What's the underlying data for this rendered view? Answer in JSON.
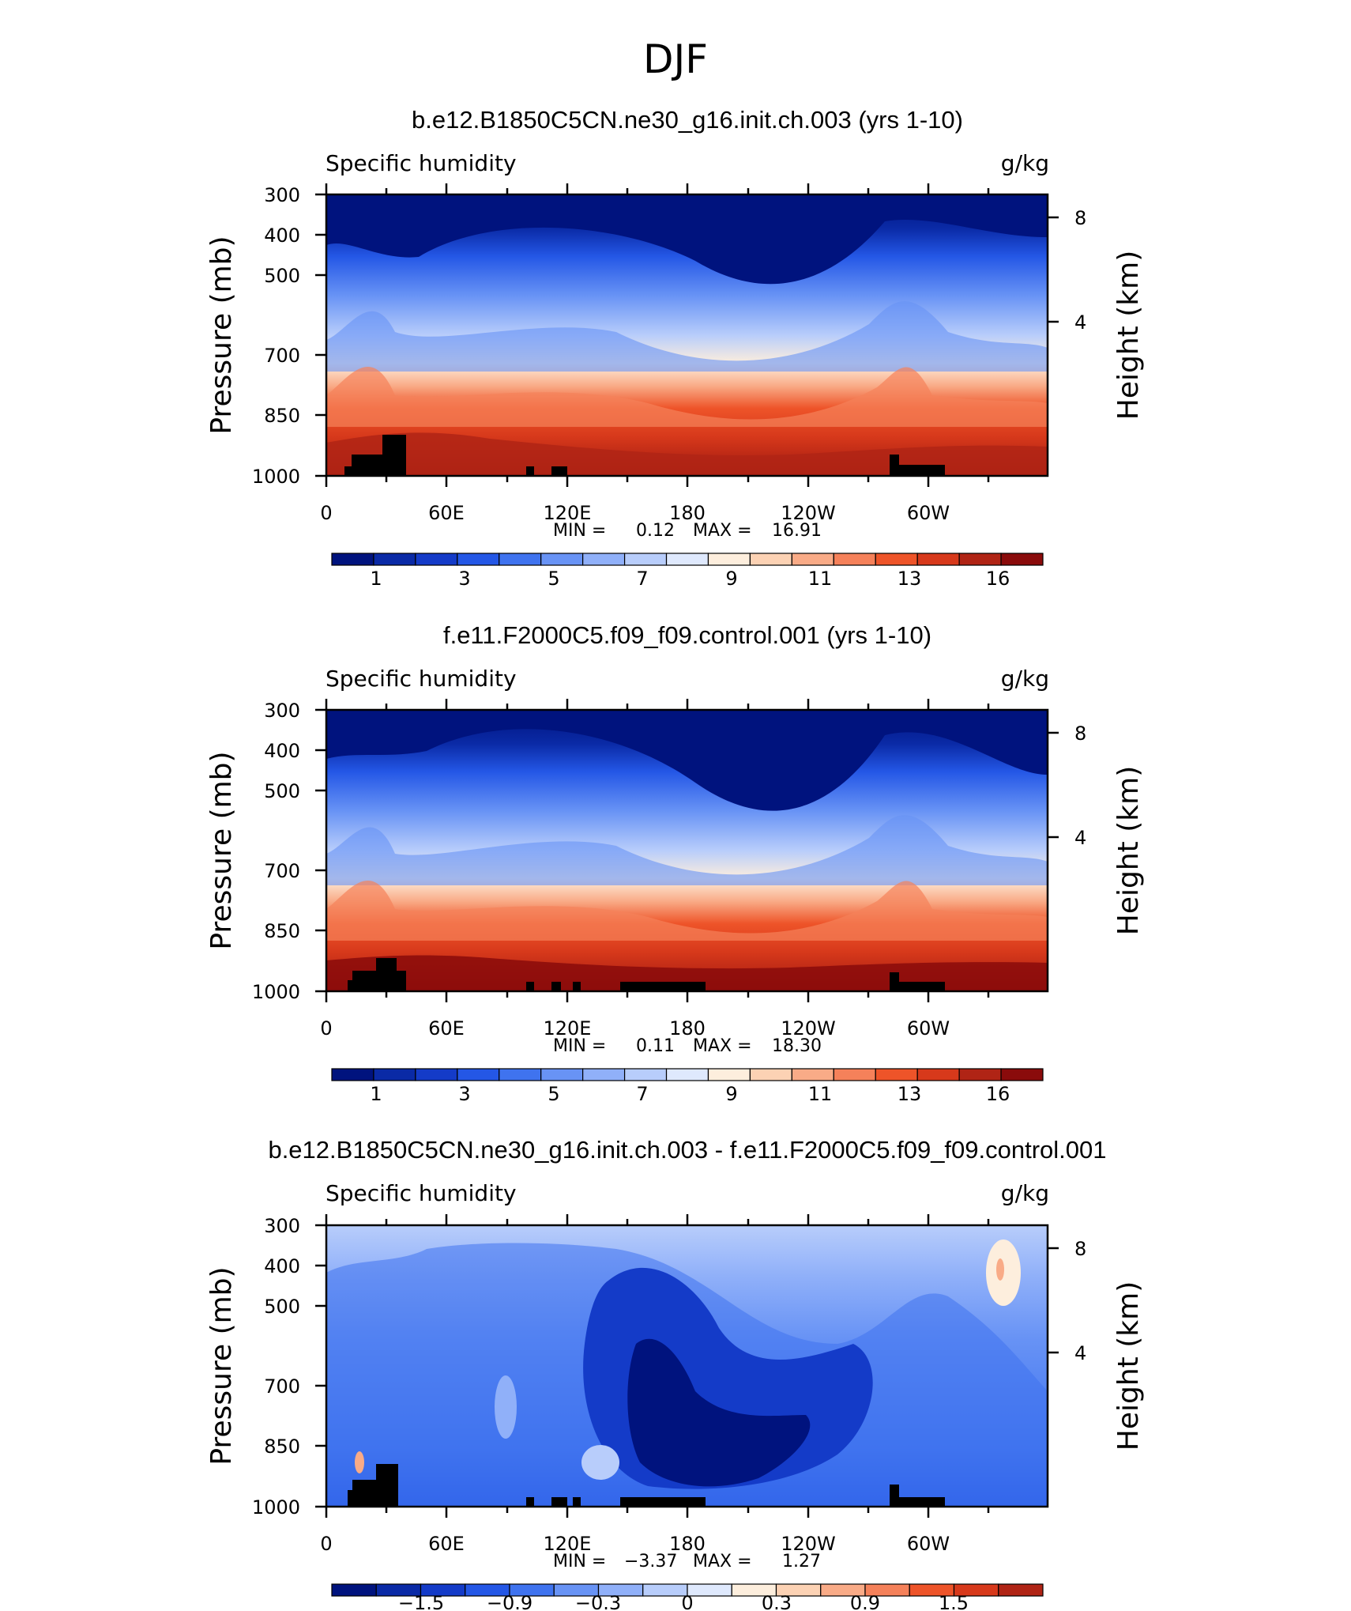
{
  "figure_title": "DJF",
  "chart_data": [
    {
      "type": "heatmap",
      "title": "b.e12.B1850C5CN.ne30_g16.init.ch.003 (yrs 1-10)",
      "variable": "Specific humidity",
      "units": "g/kg",
      "ylabel": "Pressure (mb)",
      "y2label": "Height (km)",
      "yticks": [
        "300",
        "400",
        "500",
        "700",
        "850",
        "1000"
      ],
      "y2ticks": [
        "8",
        "4"
      ],
      "xticks": [
        "0",
        "60E",
        "120E",
        "180",
        "120W",
        "60W"
      ],
      "stats": {
        "min_label": "MIN =",
        "min": "0.12",
        "max_label": "MAX =",
        "max": "16.91"
      },
      "colorbar_labels": [
        "1",
        "3",
        "5",
        "7",
        "9",
        "11",
        "13",
        "16"
      ],
      "colors": [
        "#00137e",
        "#0a2aa6",
        "#143bc8",
        "#2457e6",
        "#3f73ef",
        "#6893f5",
        "#90b0f9",
        "#b8cdfb",
        "#dfe9fd",
        "#fdeedd",
        "#fcd2b4",
        "#f9ab87",
        "#f5815a",
        "#ee5429",
        "#d7391b",
        "#b02415",
        "#8a0b0b"
      ]
    },
    {
      "type": "heatmap",
      "title": "f.e11.F2000C5.f09_f09.control.001 (yrs 1-10)",
      "variable": "Specific humidity",
      "units": "g/kg",
      "ylabel": "Pressure (mb)",
      "y2label": "Height (km)",
      "yticks": [
        "300",
        "400",
        "500",
        "700",
        "850",
        "1000"
      ],
      "y2ticks": [
        "8",
        "4"
      ],
      "xticks": [
        "0",
        "60E",
        "120E",
        "180",
        "120W",
        "60W"
      ],
      "stats": {
        "min_label": "MIN =",
        "min": "0.11",
        "max_label": "MAX =",
        "max": "18.30"
      },
      "colorbar_labels": [
        "1",
        "3",
        "5",
        "7",
        "9",
        "11",
        "13",
        "16"
      ],
      "colors": [
        "#00137e",
        "#0a2aa6",
        "#143bc8",
        "#2457e6",
        "#3f73ef",
        "#6893f5",
        "#90b0f9",
        "#b8cdfb",
        "#dfe9fd",
        "#fdeedd",
        "#fcd2b4",
        "#f9ab87",
        "#f5815a",
        "#ee5429",
        "#d7391b",
        "#b02415",
        "#8a0b0b"
      ]
    },
    {
      "type": "heatmap",
      "title": "b.e12.B1850C5CN.ne30_g16.init.ch.003 - f.e11.F2000C5.f09_f09.control.001",
      "variable": "Specific humidity",
      "units": "g/kg",
      "ylabel": "Pressure (mb)",
      "y2label": "Height (km)",
      "yticks": [
        "300",
        "400",
        "500",
        "700",
        "850",
        "1000"
      ],
      "y2ticks": [
        "8",
        "4"
      ],
      "xticks": [
        "0",
        "60E",
        "120E",
        "180",
        "120W",
        "60W"
      ],
      "stats": {
        "min_label": "MIN =",
        "min": "−3.37",
        "max_label": "MAX =",
        "max": "1.27"
      },
      "colorbar_labels": [
        "−1.5",
        "−0.9",
        "−0.3",
        "0",
        "0.3",
        "0.9",
        "1.5"
      ],
      "colors": [
        "#00137e",
        "#0a2aa6",
        "#143bc8",
        "#2457e6",
        "#3f73ef",
        "#6893f5",
        "#90b0f9",
        "#b8cdfb",
        "#dfe9fd",
        "#fdeedd",
        "#fcd2b4",
        "#f9ab87",
        "#f5815a",
        "#ee5429",
        "#d7391b",
        "#b02415"
      ]
    }
  ]
}
